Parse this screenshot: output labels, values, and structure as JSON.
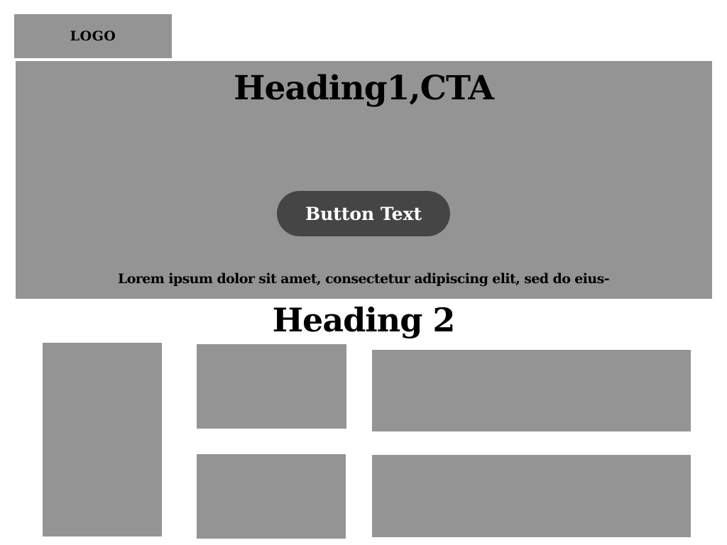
{
  "header": {
    "logo_label": "LOGO"
  },
  "hero": {
    "title": "Heading1,CTA",
    "button_label": "Button Text",
    "body_text": "Lorem ipsum dolor sit amet, consectetur adipiscing elit, sed do eius-"
  },
  "section": {
    "heading": "Heading 2"
  },
  "colors": {
    "placeholder_gray": "#949494",
    "button_dark": "#454545",
    "text": "#000000",
    "button_text": "#ffffff"
  }
}
